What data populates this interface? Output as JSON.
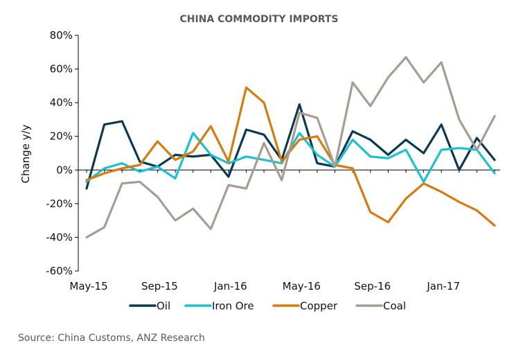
{
  "chart_data": {
    "type": "line",
    "title": "CHINA COMMODITY IMPORTS",
    "ylabel": "Change y/y",
    "xlabel": "",
    "ylim": [
      -60,
      80
    ],
    "y_ticks": [
      "80%",
      "60%",
      "40%",
      "20%",
      "0%",
      "-20%",
      "-40%",
      "-60%"
    ],
    "y_tick_values": [
      80,
      60,
      40,
      20,
      0,
      -20,
      -40,
      -60
    ],
    "x_tick_labels": [
      "May-15",
      "Sep-15",
      "Jan-16",
      "May-16",
      "Sep-16",
      "Jan-17"
    ],
    "x_tick_indices": [
      0,
      4,
      8,
      12,
      16,
      20
    ],
    "x": [
      "May-15",
      "Jun-15",
      "Jul-15",
      "Aug-15",
      "Sep-15",
      "Oct-15",
      "Nov-15",
      "Dec-15",
      "Jan-16",
      "Feb-16",
      "Mar-16",
      "Apr-16",
      "May-16",
      "Jun-16",
      "Jul-16",
      "Aug-16",
      "Sep-16",
      "Oct-16",
      "Nov-16",
      "Dec-16",
      "Jan-17",
      "Feb-17",
      "Mar-17",
      "Apr-17"
    ],
    "grid": false,
    "legend_position": "bottom",
    "series": [
      {
        "name": "Oil",
        "color": "#0b3954",
        "values": [
          -11,
          27,
          29,
          5,
          2,
          9,
          8,
          9,
          -4,
          24,
          21,
          6,
          39,
          4,
          2,
          23,
          18,
          9,
          18,
          10,
          27,
          0,
          19,
          6
        ]
      },
      {
        "name": "Iron Ore",
        "color": "#17c3d0",
        "values": [
          -7,
          1,
          4,
          -1,
          2,
          -5,
          22,
          9,
          4,
          8,
          6,
          4,
          22,
          9,
          2,
          18,
          8,
          7,
          12,
          -7,
          12,
          13,
          12,
          -2
        ]
      },
      {
        "name": "Copper",
        "color": "#d97b0c",
        "values": [
          -6,
          -2,
          1,
          3,
          17,
          6,
          11,
          26,
          5,
          49,
          40,
          5,
          18,
          20,
          3,
          1,
          -25,
          -31,
          -17,
          -8,
          -13,
          -19,
          -24,
          -33
        ]
      },
      {
        "name": "Coal",
        "color": "#a89b91",
        "values": [
          -40,
          -34,
          -8,
          -7,
          -16,
          -30,
          -23,
          -35,
          -9,
          -11,
          16,
          -6,
          34,
          31,
          2,
          52,
          38,
          55,
          67,
          52,
          64,
          30,
          12,
          32
        ]
      }
    ],
    "source": "Source: China Customs, ANZ Research"
  }
}
